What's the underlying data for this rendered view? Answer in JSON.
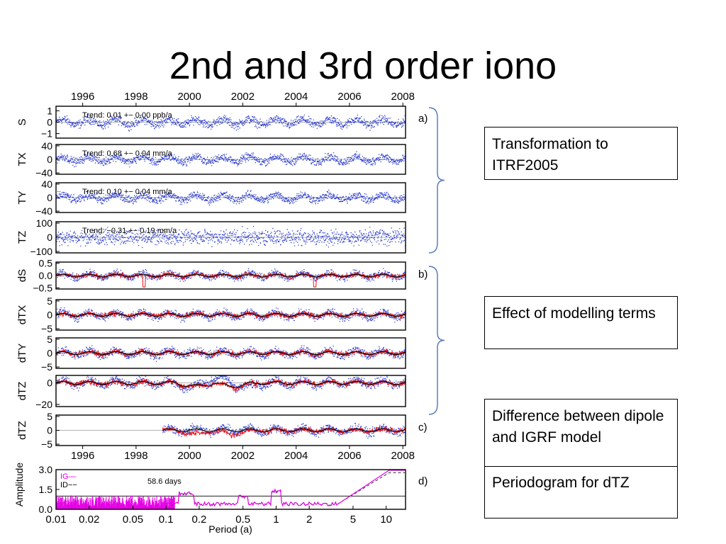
{
  "slide": {
    "title": "2nd and 3rd order iono"
  },
  "colors": {
    "blue_points": "#2233cc",
    "red_line": "#ee1111",
    "black_line": "#000000",
    "magenta": "#e600e6"
  },
  "notes": [
    {
      "text": "Transformation to ITRF2005"
    },
    {
      "text": "Effect of modelling terms"
    },
    {
      "text": "Difference between dipole and IGRF model"
    },
    {
      "text": "Periodogram for dTZ"
    }
  ],
  "chart_data": [
    {
      "type": "scatter",
      "x_axis": {
        "min": 1995,
        "max": 2008.1,
        "ticks": [
          "1996",
          "1998",
          "2000",
          "2002",
          "2004",
          "2006",
          "2008"
        ],
        "position": "top"
      },
      "panels": [
        {
          "ylabel": "S",
          "ylim": [
            -1.4,
            1.4
          ],
          "yticks": [
            "1",
            "0",
            "−1"
          ],
          "trend": "Trend: 0.01 +− 0.00 ppb/a",
          "has_red_black": false,
          "group": "a)"
        },
        {
          "ylabel": "TX",
          "ylim": [
            -44,
            44
          ],
          "yticks": [
            "40",
            "0",
            "−40"
          ],
          "trend": "Trend: 0.68 +− 0.04 mm/a",
          "has_red_black": false,
          "group": ""
        },
        {
          "ylabel": "TY",
          "ylim": [
            -44,
            44
          ],
          "yticks": [
            "40",
            "0",
            "−40"
          ],
          "trend": "Trend: 0.10 +− 0.04 mm/a",
          "has_red_black": false,
          "group": ""
        },
        {
          "ylabel": "TZ",
          "ylim": [
            -110,
            110
          ],
          "yticks": [
            "100",
            "0",
            "−100"
          ],
          "trend": "Trend: −0.31 +− 0.19 mm/a",
          "has_red_black": false,
          "group": ""
        },
        {
          "ylabel": "dS",
          "ylim": [
            -0.55,
            0.55
          ],
          "yticks": [
            "0.5",
            "0.0",
            "−0.5"
          ],
          "trend": "",
          "has_red_black": true,
          "group": "b)"
        },
        {
          "ylabel": "dTX",
          "ylim": [
            -5.5,
            5.5
          ],
          "yticks": [
            "5",
            "0",
            "−5"
          ],
          "trend": "",
          "has_red_black": true,
          "group": ""
        },
        {
          "ylabel": "dTY",
          "ylim": [
            -5.5,
            5.5
          ],
          "yticks": [
            "5",
            "0",
            "−5"
          ],
          "trend": "",
          "has_red_black": true,
          "group": ""
        },
        {
          "ylabel": "dTZ",
          "ylim": [
            -22,
            7
          ],
          "yticks": [
            "0",
            "−20"
          ],
          "trend": "",
          "has_red_black": true,
          "group": ""
        }
      ]
    },
    {
      "type": "scatter",
      "x_axis": {
        "min": 1995,
        "max": 2008.1,
        "ticks": [
          "1996",
          "1998",
          "2000",
          "2002",
          "2004",
          "2006",
          "2008"
        ],
        "position": "bottom"
      },
      "panels": [
        {
          "ylabel": "dTZ",
          "ylim": [
            -5.5,
            5.5
          ],
          "yticks": [
            "5",
            "0",
            "−5"
          ],
          "trend": "",
          "has_red_black": true,
          "start_year": 1999,
          "group": "c)"
        }
      ]
    },
    {
      "type": "line",
      "xlabel": "Period (a)",
      "ylabel": "Amplitude",
      "x_scale": "log",
      "xlim": [
        0.01,
        15
      ],
      "x_ticks": [
        "0.01",
        "0.02",
        "0.05",
        "0.1",
        "0.2",
        "0.5",
        "1",
        "2",
        "5",
        "10"
      ],
      "ylim": [
        0,
        3.0
      ],
      "y_ticks": [
        "3.0",
        "1.5",
        "0.0"
      ],
      "legend": [
        "IG—",
        "ID−−"
      ],
      "annotation": "58.6 days",
      "group": "d)"
    }
  ]
}
